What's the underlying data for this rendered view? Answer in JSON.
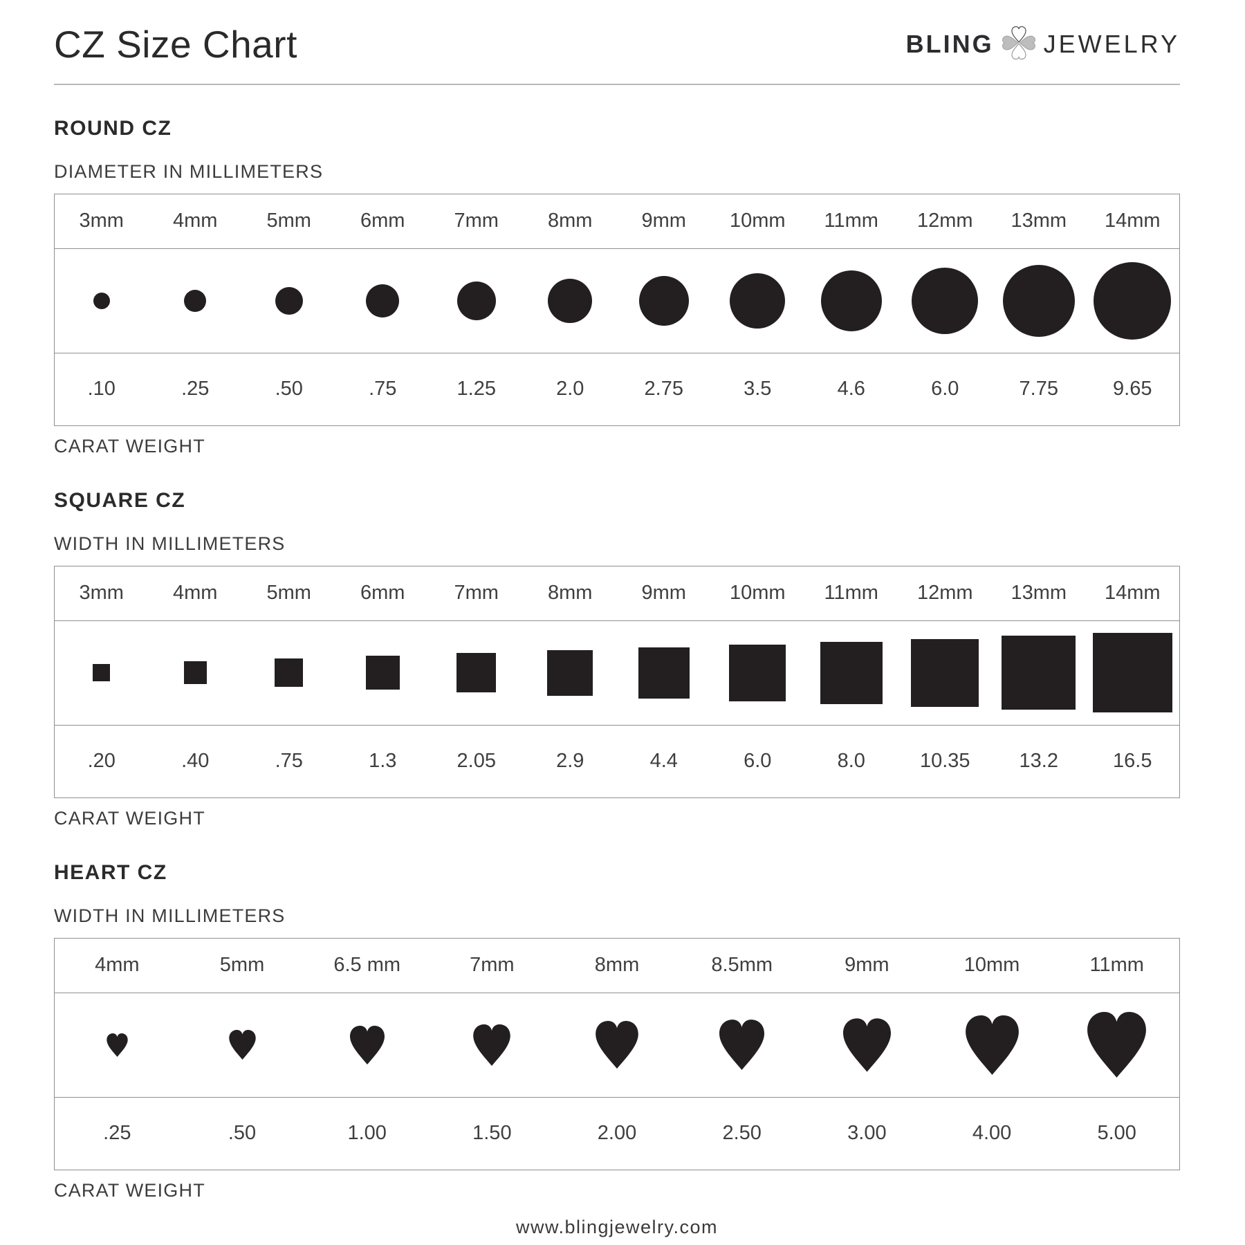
{
  "page": {
    "title": "CZ Size Chart",
    "brand": {
      "name_left": "BLING",
      "name_right": "JEWELRY",
      "icon": "clover-hearts-icon"
    },
    "footer_url": "www.blingjewelry.com"
  },
  "colors": {
    "shape_fill": "#231f20",
    "table_border": "#8f8f8f",
    "heading_text": "#2b2b2b",
    "label_text": "#3f3f3f",
    "rule": "#b9b9b9"
  },
  "chart_data": [
    {
      "type": "table",
      "shape": "circle",
      "title": "ROUND CZ",
      "dimension_label": "DIAMETER IN MILLIMETERS",
      "carat_label": "CARAT WEIGHT",
      "sizes_mm": [
        3,
        4,
        5,
        6,
        7,
        8,
        9,
        10,
        11,
        12,
        13,
        14
      ],
      "size_labels": [
        "3mm",
        "4mm",
        "5mm",
        "6mm",
        "7mm",
        "8mm",
        "9mm",
        "10mm",
        "11mm",
        "12mm",
        "13mm",
        "14mm"
      ],
      "carat_weights": [
        ".10",
        ".25",
        ".50",
        ".75",
        "1.25",
        "2.0",
        "2.75",
        "3.5",
        "4.6",
        "6.0",
        "7.75",
        "9.65"
      ]
    },
    {
      "type": "table",
      "shape": "square",
      "title": "SQUARE CZ",
      "dimension_label": "WIDTH IN MILLIMETERS",
      "carat_label": "CARAT WEIGHT",
      "sizes_mm": [
        3,
        4,
        5,
        6,
        7,
        8,
        9,
        10,
        11,
        12,
        13,
        14
      ],
      "size_labels": [
        "3mm",
        "4mm",
        "5mm",
        "6mm",
        "7mm",
        "8mm",
        "9mm",
        "10mm",
        "11mm",
        "12mm",
        "13mm",
        "14mm"
      ],
      "carat_weights": [
        ".20",
        ".40",
        ".75",
        "1.3",
        "2.05",
        "2.9",
        "4.4",
        "6.0",
        "8.0",
        "10.35",
        "13.2",
        "16.5"
      ]
    },
    {
      "type": "table",
      "shape": "heart",
      "title": "HEART CZ",
      "dimension_label": "WIDTH IN MILLIMETERS",
      "carat_label": "CARAT WEIGHT",
      "sizes_mm": [
        4,
        5,
        6.5,
        7,
        8,
        8.5,
        9,
        10,
        11
      ],
      "size_labels": [
        "4mm",
        "5mm",
        "6.5 mm",
        "7mm",
        "8mm",
        "8.5mm",
        "9mm",
        "10mm",
        "11mm"
      ],
      "carat_weights": [
        ".25",
        ".50",
        "1.00",
        "1.50",
        "2.00",
        "2.50",
        "3.00",
        "4.00",
        "5.00"
      ]
    }
  ]
}
